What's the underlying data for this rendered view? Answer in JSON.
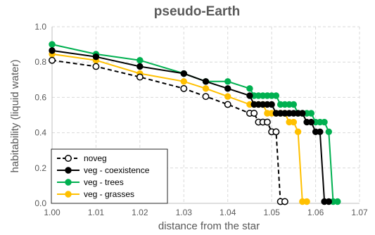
{
  "chart_data": {
    "type": "line",
    "title": "pseudo-Earth",
    "xlabel": "distance from the star",
    "ylabel": "habitability (liquid water)",
    "xlim": [
      1.0,
      1.07
    ],
    "ylim": [
      0.0,
      1.0
    ],
    "xticks": [
      "1.00",
      "1.01",
      "1.02",
      "1.03",
      "1.04",
      "1.05",
      "1.06",
      "1.07"
    ],
    "yticks": [
      "0.0",
      "0.2",
      "0.4",
      "0.6",
      "0.8",
      "1.0"
    ],
    "grid": true,
    "legend_position": "bottom-left",
    "series": [
      {
        "name": "noveg",
        "color": "#000000",
        "marker": "open-circle",
        "dashed": true,
        "x": [
          1.0,
          1.01,
          1.02,
          1.03,
          1.035,
          1.04,
          1.045,
          1.046,
          1.047,
          1.048,
          1.049,
          1.05,
          1.051,
          1.052,
          1.053
        ],
        "y": [
          0.81,
          0.775,
          0.715,
          0.65,
          0.605,
          0.56,
          0.51,
          0.51,
          0.46,
          0.46,
          0.46,
          0.405,
          0.405,
          0.01,
          0.01
        ]
      },
      {
        "name": "veg - coexistence",
        "color": "#000000",
        "marker": "filled-circle",
        "dashed": false,
        "x": [
          1.0,
          1.01,
          1.02,
          1.03,
          1.035,
          1.04,
          1.045,
          1.046,
          1.047,
          1.048,
          1.049,
          1.05,
          1.051,
          1.052,
          1.053,
          1.054,
          1.055,
          1.056,
          1.057,
          1.058,
          1.059,
          1.06,
          1.061,
          1.062,
          1.063
        ],
        "y": [
          0.865,
          0.83,
          0.775,
          0.735,
          0.69,
          0.65,
          0.61,
          0.56,
          0.56,
          0.56,
          0.56,
          0.56,
          0.51,
          0.51,
          0.51,
          0.51,
          0.51,
          0.51,
          0.51,
          0.46,
          0.46,
          0.405,
          0.405,
          0.01,
          0.01
        ]
      },
      {
        "name": "veg - trees",
        "color": "#00b050",
        "marker": "filled-circle",
        "dashed": false,
        "x": [
          1.0,
          1.01,
          1.02,
          1.03,
          1.035,
          1.04,
          1.045,
          1.046,
          1.047,
          1.048,
          1.049,
          1.05,
          1.051,
          1.052,
          1.053,
          1.054,
          1.055,
          1.056,
          1.057,
          1.058,
          1.059,
          1.06,
          1.061,
          1.062,
          1.063,
          1.064,
          1.065
        ],
        "y": [
          0.9,
          0.845,
          0.81,
          0.735,
          0.69,
          0.69,
          0.65,
          0.61,
          0.61,
          0.61,
          0.61,
          0.61,
          0.61,
          0.56,
          0.56,
          0.56,
          0.56,
          0.51,
          0.51,
          0.51,
          0.51,
          0.46,
          0.46,
          0.46,
          0.405,
          0.01,
          0.01
        ]
      },
      {
        "name": "veg - grasses",
        "color": "#ffc000",
        "marker": "filled-circle",
        "dashed": false,
        "x": [
          1.0,
          1.01,
          1.02,
          1.03,
          1.035,
          1.04,
          1.045,
          1.046,
          1.047,
          1.048,
          1.049,
          1.05,
          1.051,
          1.052,
          1.053,
          1.054,
          1.055,
          1.056,
          1.057,
          1.058
        ],
        "y": [
          0.845,
          0.81,
          0.735,
          0.69,
          0.65,
          0.605,
          0.56,
          0.56,
          0.56,
          0.56,
          0.51,
          0.51,
          0.51,
          0.51,
          0.51,
          0.46,
          0.46,
          0.405,
          0.01,
          0.01
        ]
      }
    ]
  }
}
